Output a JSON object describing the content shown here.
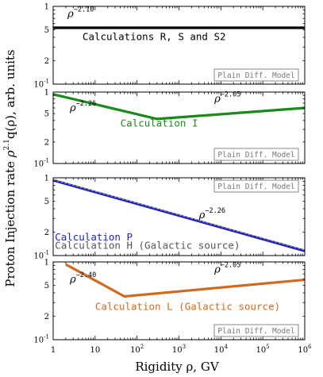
{
  "chart_data": {
    "type": "line",
    "xlabel": "Rigidity ρ,  GV",
    "ylabel": "Proton Injection rate  ρ^2.1 q(ρ),  arb. units",
    "ylabel_parts": {
      "main": "Proton Injection rate  ",
      "rho": "ρ",
      "sup": "2.1",
      "rest": "q(ρ),  arb. units"
    },
    "x_scale": "log",
    "y_scale": "log",
    "xlim": [
      1,
      1000000
    ],
    "ylim": [
      0.1,
      1
    ],
    "x_ticks": [
      {
        "value": 1,
        "label": "1",
        "sup": ""
      },
      {
        "value": 10,
        "label": "10",
        "sup": ""
      },
      {
        "value": 100,
        "label": "10",
        "sup": "2"
      },
      {
        "value": 1000,
        "label": "10",
        "sup": "3"
      },
      {
        "value": 10000,
        "label": "10",
        "sup": "4"
      },
      {
        "value": 100000,
        "label": "10",
        "sup": "5"
      },
      {
        "value": 1000000,
        "label": "10",
        "sup": "6"
      }
    ],
    "y_ticks": [
      {
        "value": 1,
        "label": "1",
        "sup": ""
      },
      {
        "value": 0.5,
        "label": "5",
        "sup": ""
      },
      {
        "value": 0.2,
        "label": "2",
        "sup": ""
      },
      {
        "value": 0.1,
        "label": "10",
        "sup": "-1"
      }
    ],
    "model_label": "Plain Diff. Model",
    "panels": [
      {
        "series": [
          {
            "name": "Calculations R, S and S2",
            "color": "#000000",
            "points": [
              [
                1,
                0.53
              ],
              [
                1000000,
                0.53
              ]
            ]
          }
        ],
        "annotations": [
          {
            "base": "ρ",
            "exp": "−2.10",
            "x": 2.2,
            "y": 0.73
          }
        ],
        "labels": [
          {
            "text": "Calculations R, S and S2",
            "color": "#000000",
            "x": 5,
            "y": 0.37
          }
        ],
        "box_position": "bottom-right"
      },
      {
        "series": [
          {
            "name": "Calculation I",
            "color": "#1a8a1a",
            "points": [
              [
                1,
                0.93
              ],
              [
                300,
                0.42
              ],
              [
                1000000,
                0.6
              ]
            ]
          }
        ],
        "annotations": [
          {
            "base": "ρ",
            "exp": "−2.26",
            "x": 2.5,
            "y": 0.54
          },
          {
            "base": "ρ",
            "exp": "−2.05",
            "x": 7000,
            "y": 0.73
          }
        ],
        "labels": [
          {
            "text": "Calculation I",
            "color": "#1a8a1a",
            "x": 40,
            "y": 0.33
          }
        ],
        "box_position": "bottom-right"
      },
      {
        "series": [
          {
            "name": "Calculation P",
            "color": "#2020c0",
            "points": [
              [
                1,
                0.93
              ],
              [
                1000000,
                0.115
              ]
            ]
          },
          {
            "name": "Calculation H (Galactic source)",
            "color": "#909090",
            "points": [
              [
                1,
                0.95
              ],
              [
                1000000,
                0.118
              ]
            ],
            "dashed": true
          }
        ],
        "annotations": [
          {
            "base": "ρ",
            "exp": "−2.26",
            "x": 3000,
            "y": 0.3
          }
        ],
        "labels": [
          {
            "text": "Calculation P",
            "color": "#2020c0",
            "x": 1.1,
            "y": 0.157
          },
          {
            "text": "Calculation H (Galactic source)",
            "color": "#555555",
            "x": 1.1,
            "y": 0.122
          }
        ],
        "box_position": "top-right"
      },
      {
        "series": [
          {
            "name": "Calculation L (Galactic source)",
            "color": "#d2691e",
            "points": [
              [
                2,
                0.93
              ],
              [
                50,
                0.36
              ],
              [
                1000000,
                0.59
              ]
            ]
          }
        ],
        "annotations": [
          {
            "base": "ρ",
            "exp": "−2.40",
            "x": 2.5,
            "y": 0.54
          },
          {
            "base": "ρ",
            "exp": "−2.05",
            "x": 7000,
            "y": 0.73
          }
        ],
        "labels": [
          {
            "text": "Calculation L (Galactic source)",
            "color": "#d2691e",
            "x": 10,
            "y": 0.24
          }
        ],
        "box_position": "bottom-right"
      }
    ]
  }
}
